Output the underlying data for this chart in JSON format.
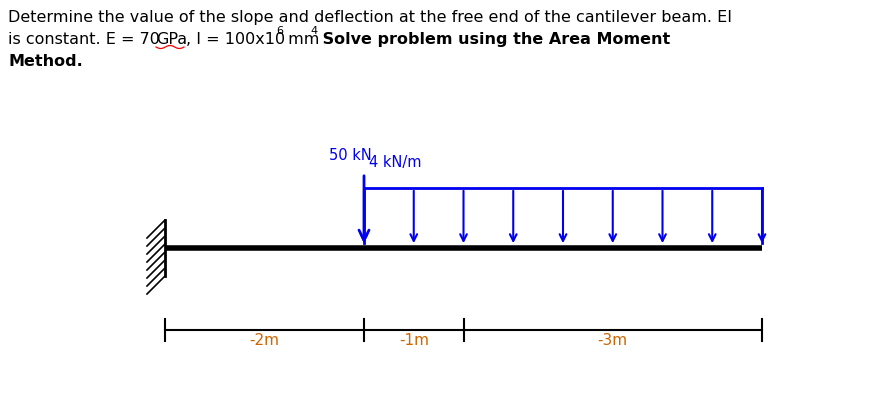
{
  "beam_color": "#000000",
  "load_color": "#0000ee",
  "dim_color": "#cc6600",
  "bg_color": "#ffffff",
  "label_50kN": "50 kN",
  "label_4kNm": "4 kN/m",
  "dim_labels": [
    "-2m",
    "-1m",
    "-3m"
  ],
  "wall_hatch_color": "#000000",
  "underline_color": "#ff0000"
}
